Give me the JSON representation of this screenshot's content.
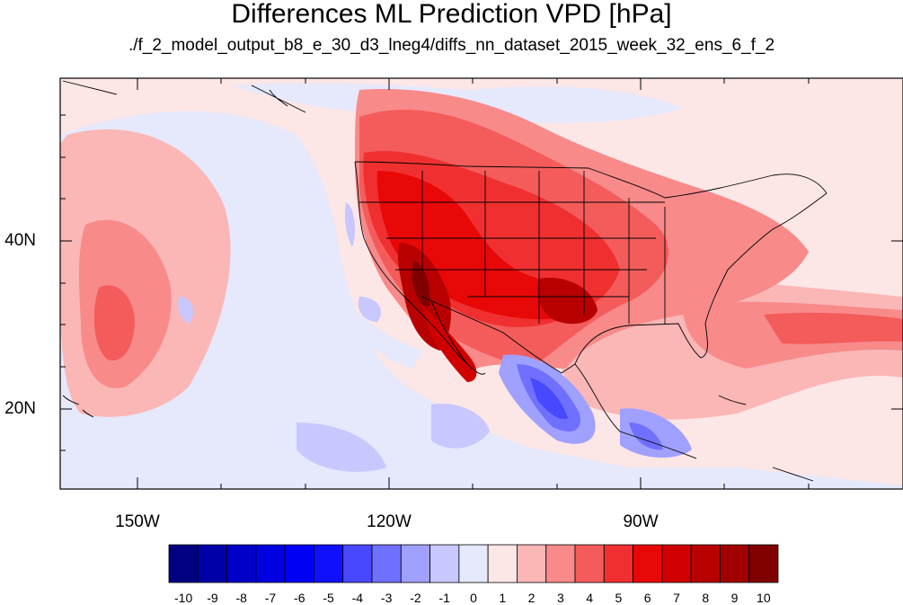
{
  "title": "Differences ML Prediction VPD [hPa]",
  "subtitle": "./f_2_model_output_b8_e_30_d3_lneg4/diffs_nn_dataset_2015_week_32_ens_6_f_2",
  "map": {
    "lat_labels": [
      "40N",
      "20N"
    ],
    "lon_labels": [
      "150W",
      "120W",
      "90W"
    ],
    "colors": {
      "land_outline": "#000000",
      "background_field": "#fde6e6"
    }
  },
  "colorbar": {
    "labels": [
      "-10",
      "-9",
      "-8",
      "-7",
      "-6",
      "-5",
      "-4",
      "-3",
      "-2",
      "-1",
      "0",
      "1",
      "2",
      "3",
      "4",
      "5",
      "6",
      "7",
      "8",
      "9",
      "10"
    ],
    "colors": [
      "#000080",
      "#0000a8",
      "#0000c8",
      "#0000e0",
      "#0000f5",
      "#1010ff",
      "#4848ff",
      "#7070ff",
      "#a0a0ff",
      "#c8c8ff",
      "#e6e8fb",
      "#fde6e6",
      "#fbb6b6",
      "#f88a8a",
      "#f45c5c",
      "#f03030",
      "#e80808",
      "#d00000",
      "#b80000",
      "#a00000",
      "#800000"
    ]
  }
}
